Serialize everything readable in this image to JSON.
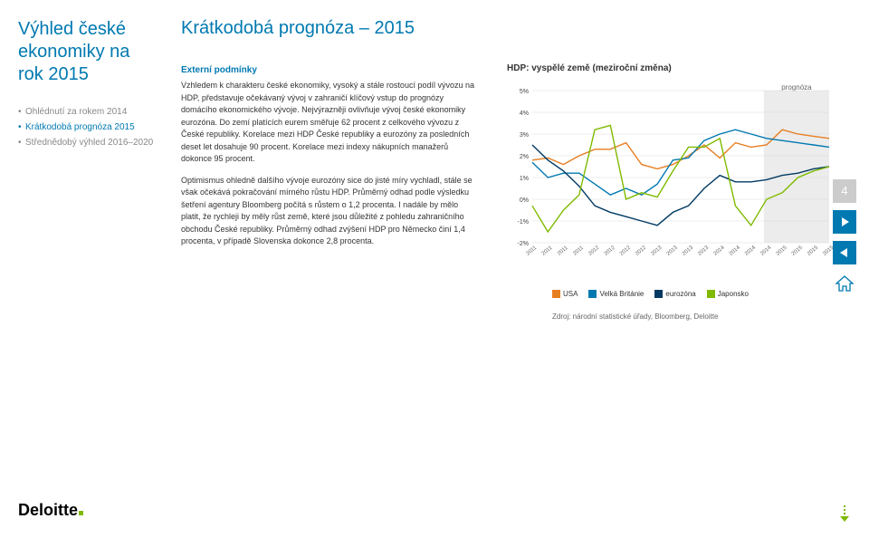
{
  "leftTitle": "Výhled české ekonomiky na rok 2015",
  "nav": [
    {
      "label": "Ohlédnutí za rokem 2014",
      "active": false
    },
    {
      "label": "Krátkodobá prognóza 2015",
      "active": true
    },
    {
      "label": "Střednědobý výhled 2016–2020",
      "active": false
    }
  ],
  "mainTitle": "Krátkodobá prognóza – 2015",
  "section": {
    "heading": "Externí podmínky",
    "para1": "Vzhledem k charakteru české ekonomiky, vysoký a stále rostoucí podíl vývozu na HDP, představuje očekávaný vývoj v zahraničí klíčový vstup do prognózy domácího ekonomického vývoje. Nejvýrazněji ovlivňuje vývoj české ekonomiky eurozóna. Do zemí platících eurem směřuje 62 procent z celkového vývozu z České republiky. Korelace mezi HDP České republiky a eurozóny za posledních deset let dosahuje 90 procent. Korelace mezi indexy nákupních manažerů dokonce 95 procent.",
    "para2": "Optimismus ohledně dalšího vývoje eurozóny sice do jisté míry vychladl, stále se však očekává pokračování mírného růstu HDP. Průměrný odhad podle výsledku šetření agentury Bloomberg počítá s růstem o 1,2 procenta. I nadále by mělo platit, že rychleji by měly růst země, které jsou důležité z pohledu zahraničního obchodu České republiky. Průměrný odhad zvýšení HDP pro Německo činí 1,4 procenta, v případě Slovenska dokonce 2,8 procenta."
  },
  "chart": {
    "title": "HDP: vyspělé země (meziroční změna)",
    "prognoza_label": "prognóza",
    "ylim": [
      -2,
      5
    ],
    "yticks": [
      "5%",
      "4%",
      "3%",
      "2%",
      "1%",
      "0%",
      "-1%",
      "-2%"
    ],
    "xlabels": [
      "2011",
      "2011",
      "2011",
      "2011",
      "2012",
      "2012",
      "2012",
      "2012",
      "2013",
      "2013",
      "2013",
      "2013",
      "2014",
      "2014",
      "2014",
      "2014",
      "2015",
      "2015",
      "2015",
      "2015"
    ],
    "shade_start": 0.78,
    "series": {
      "usa": {
        "color": "#e67e22",
        "values": [
          1.8,
          1.9,
          1.6,
          2.0,
          2.3,
          2.3,
          2.6,
          1.6,
          1.4,
          1.6,
          2.0,
          2.5,
          1.9,
          2.6,
          2.4,
          2.5,
          3.2,
          3.0,
          2.9,
          2.8
        ]
      },
      "uk": {
        "color": "#0079b1",
        "values": [
          1.7,
          1.0,
          1.2,
          1.2,
          0.7,
          0.2,
          0.5,
          0.2,
          0.7,
          1.8,
          1.9,
          2.7,
          3.0,
          3.2,
          3.0,
          2.8,
          2.7,
          2.6,
          2.5,
          2.4
        ]
      },
      "euro": {
        "color": "#003a63",
        "values": [
          2.5,
          1.8,
          1.3,
          0.6,
          -0.3,
          -0.6,
          -0.8,
          -1.0,
          -1.2,
          -0.6,
          -0.3,
          0.5,
          1.1,
          0.8,
          0.8,
          0.9,
          1.1,
          1.2,
          1.4,
          1.5
        ]
      },
      "japan": {
        "color": "#7fba00",
        "values": [
          -0.3,
          -1.5,
          -0.5,
          0.2,
          3.2,
          3.4,
          0.0,
          0.3,
          0.1,
          1.3,
          2.4,
          2.4,
          2.8,
          -0.3,
          -1.2,
          0.0,
          0.3,
          1.0,
          1.3,
          1.5
        ]
      }
    },
    "legend": [
      {
        "label": "USA",
        "color": "#e67e22"
      },
      {
        "label": "Velká Británie",
        "color": "#0079b1"
      },
      {
        "label": "eurozóna",
        "color": "#003a63"
      },
      {
        "label": "Japonsko",
        "color": "#7fba00"
      }
    ],
    "source": "Zdroj: národní statistické úřady, Bloomberg, Deloitte",
    "bg": "#ffffff",
    "grid": "#d9d9d9",
    "tick_fontsize": 7,
    "line_width": 1.4
  },
  "logo": "Deloitte",
  "pageNum": "4"
}
